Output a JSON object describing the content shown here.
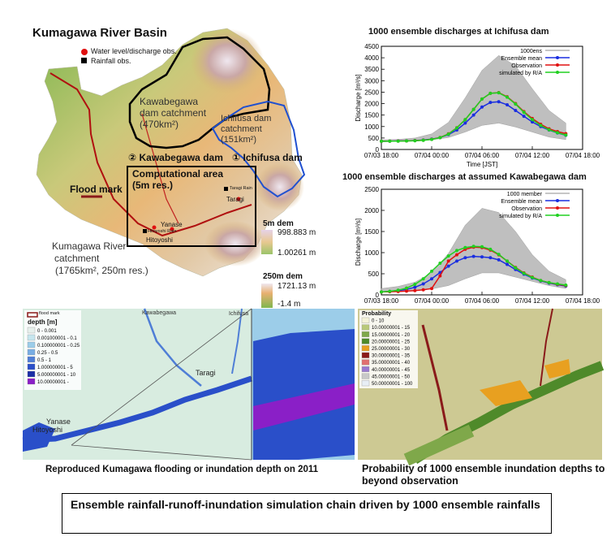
{
  "map": {
    "title": "Kumagawa River Basin",
    "legend_water": "Water level/discharge obs.",
    "legend_rain": "Rainfall obs.",
    "kawabe_catch_1": "Kawabegawa",
    "kawabe_catch_2": "dam catchment",
    "kawabe_catch_3": "(470km²)",
    "ichifusa_catch_1": "Ichifusa dam",
    "ichifusa_catch_2": "catchment",
    "ichifusa_catch_3": "(151km²)",
    "kawabe_dam": "② Kawabegawa dam",
    "ichifusa_dam": "① Ichifusa dam",
    "comp_area_1": "Computational area",
    "comp_area_2": "(5m res.)",
    "flood_mark": "Flood mark",
    "taragi_rain": "Taragi Rain",
    "taragi": "Taragi",
    "yanase": "Yanase",
    "hitoyoshi_rain": "Hitoyoshi Rain",
    "hitoyoshi": "Hitoyoshi",
    "kuma_catch_1": "Kumagawa River",
    "kuma_catch_2": "catchment",
    "kuma_catch_3": "(1765km², 250m res.)",
    "dem5_title": "5m dem",
    "dem5_max": "998.883 m",
    "dem5_min": "1.00261 m",
    "dem250_title": "250m dem",
    "dem250_max": "1721.13 m",
    "dem250_min": "-1.4 m"
  },
  "depth_map": {
    "flood_mark": "flood mark",
    "legend_title": "depth [m]",
    "legend": [
      "0 - 0.001",
      "0.001000001 - 0.1",
      "0.100000001 - 0.25",
      "0.25 - 0.5",
      "0.5 - 1",
      "1.000000001 - 5",
      "5.000000001 - 10",
      "10.00000001 -"
    ],
    "legend_colors": [
      "#e6f0ec",
      "#c6e6ee",
      "#9ccde9",
      "#79aee3",
      "#4f7ed6",
      "#2a4fc9",
      "#1a2fa6",
      "#8a1fc7"
    ],
    "kawabegawa": "Kawabegawa",
    "ichifusa": "Ichifusa",
    "taragi": "Taragi",
    "yanase": "Yanase",
    "hitoyoshi": "Hitoyoshi",
    "caption": "Reproduced Kumagawa flooding or inundation depth on 2011"
  },
  "prob_map": {
    "legend_title": "Probability",
    "legend": [
      "0 - 10",
      "10.00000001 - 15",
      "15.00000001 - 20",
      "20.00000001 - 25",
      "25.00000001 - 30",
      "30.00000001 - 35",
      "35.00000001 - 40",
      "40.00000001 - 45",
      "45.00000001 - 50",
      "50.00000001 - 100"
    ],
    "legend_colors": [
      "#f4f2d8",
      "#b9c97a",
      "#7fa84a",
      "#4f8a2a",
      "#e8a020",
      "#8a1a1a",
      "#e07070",
      "#9a7ad0",
      "#c8c8c8",
      "#e8eef5"
    ],
    "caption": "Probability of 1000 ensemble inundation depths to beyond observation"
  },
  "banner": "Ensemble rainfall-runoff-inundation simulation chain driven by 1000 ensemble rainfalls",
  "chart_data": [
    {
      "type": "line",
      "title": "1000 ensemble discharges at Ichifusa dam",
      "xlabel": "Time [JST]",
      "ylabel": "Discharge [m³/s]",
      "x_ticks": [
        "07/03 18:00",
        "07/04 00:00",
        "07/04 06:00",
        "07/04 12:00",
        "07/04 18:00"
      ],
      "x_hours": [
        0,
        6,
        12,
        18,
        24
      ],
      "xlim_hours": [
        0,
        24
      ],
      "ylim": [
        0,
        4500
      ],
      "y_ticks": [
        0,
        500,
        1000,
        1500,
        2000,
        2500,
        3000,
        3500,
        4000,
        4500
      ],
      "legend_position": "top-right",
      "series": [
        {
          "name": "1000ens",
          "color": "#b4b4b4",
          "markers": false,
          "band_hours": [
            0,
            2,
            4,
            6,
            8,
            10,
            12,
            14,
            16,
            18,
            20,
            22
          ],
          "band_low": [
            330,
            350,
            370,
            420,
            520,
            760,
            1050,
            1150,
            980,
            760,
            540,
            430
          ],
          "band_high": [
            420,
            440,
            500,
            680,
            1180,
            2250,
            3450,
            4100,
            3650,
            2650,
            1700,
            1150
          ]
        },
        {
          "name": "Ensemble mean",
          "color": "#1a2ee0",
          "hours": [
            0,
            1,
            2,
            3,
            4,
            5,
            6,
            7,
            8,
            9,
            10,
            11,
            12,
            13,
            14,
            15,
            16,
            17,
            18,
            19,
            20,
            21,
            22
          ],
          "values": [
            360,
            365,
            370,
            378,
            390,
            410,
            450,
            520,
            650,
            850,
            1150,
            1500,
            1850,
            2050,
            2080,
            1950,
            1700,
            1450,
            1200,
            1000,
            850,
            720,
            620
          ]
        },
        {
          "name": "Observation",
          "color": "#e01010",
          "hours": [
            0,
            1,
            2,
            3,
            4,
            5,
            6,
            7,
            8,
            9,
            10,
            11,
            12,
            13,
            14,
            15,
            16,
            17,
            18,
            19,
            20,
            21,
            22
          ],
          "values": [
            360,
            362,
            366,
            372,
            385,
            405,
            445,
            520,
            680,
            950,
            1300,
            1750,
            2200,
            2450,
            2480,
            2300,
            2000,
            1650,
            1350,
            1100,
            900,
            780,
            690
          ]
        },
        {
          "name": "simulated by R/A",
          "color": "#20d020",
          "hours": [
            0,
            1,
            2,
            3,
            4,
            5,
            6,
            7,
            8,
            9,
            10,
            11,
            12,
            13,
            14,
            15,
            16,
            17,
            18,
            19,
            20,
            21,
            22
          ],
          "values": [
            360,
            362,
            365,
            370,
            380,
            400,
            440,
            515,
            670,
            940,
            1300,
            1750,
            2200,
            2450,
            2470,
            2280,
            1980,
            1620,
            1300,
            1050,
            860,
            730,
            630
          ]
        }
      ]
    },
    {
      "type": "line",
      "title": "1000 ensemble discharges at assumed Kawabegawa dam",
      "xlabel": "",
      "ylabel": "Discharge [m³/s]",
      "x_ticks": [
        "07/03 18:00",
        "07/04 00:00",
        "07/04 06:00",
        "07/04 12:00",
        "07/04 18:00"
      ],
      "x_hours": [
        0,
        6,
        12,
        18,
        24
      ],
      "xlim_hours": [
        0,
        24
      ],
      "ylim": [
        0,
        2500
      ],
      "y_ticks": [
        0,
        500,
        1000,
        1500,
        2000,
        2500
      ],
      "legend_position": "top-right",
      "series": [
        {
          "name": "1000 member",
          "color": "#b4b4b4",
          "markers": false,
          "band_hours": [
            0,
            2,
            4,
            6,
            8,
            10,
            12,
            14,
            16,
            18,
            20,
            22
          ],
          "band_low": [
            70,
            80,
            100,
            140,
            220,
            380,
            520,
            520,
            420,
            320,
            220,
            150
          ],
          "band_high": [
            150,
            200,
            300,
            520,
            980,
            1650,
            2050,
            1950,
            1500,
            950,
            560,
            360
          ]
        },
        {
          "name": "Ensemble mean",
          "color": "#1a2ee0",
          "hours": [
            0,
            1,
            2,
            3,
            4,
            5,
            6,
            7,
            8,
            9,
            10,
            11,
            12,
            13,
            14,
            15,
            16,
            17,
            18,
            19,
            20,
            21,
            22
          ],
          "values": [
            70,
            80,
            100,
            130,
            180,
            260,
            380,
            530,
            680,
            800,
            880,
            910,
            900,
            880,
            830,
            720,
            600,
            490,
            400,
            330,
            280,
            240,
            210
          ]
        },
        {
          "name": "Observation",
          "color": "#e01010",
          "hours": [
            0,
            1,
            2,
            3,
            4,
            5,
            6,
            7,
            8,
            9,
            10,
            11,
            12,
            13,
            14,
            15,
            16,
            17,
            18,
            19,
            20,
            21,
            22
          ],
          "values": [
            70,
            75,
            80,
            90,
            100,
            120,
            150,
            450,
            800,
            950,
            1080,
            1130,
            1120,
            1060,
            950,
            800,
            650,
            520,
            420,
            340,
            290,
            250,
            220
          ]
        },
        {
          "name": "simulated by R/A",
          "color": "#20d020",
          "hours": [
            0,
            1,
            2,
            3,
            4,
            5,
            6,
            7,
            8,
            9,
            10,
            11,
            12,
            13,
            14,
            15,
            16,
            17,
            18,
            19,
            20,
            21,
            22
          ],
          "values": [
            70,
            85,
            110,
            160,
            250,
            380,
            560,
            750,
            920,
            1050,
            1120,
            1150,
            1140,
            1080,
            960,
            800,
            640,
            510,
            410,
            340,
            290,
            260,
            230
          ]
        }
      ]
    }
  ]
}
